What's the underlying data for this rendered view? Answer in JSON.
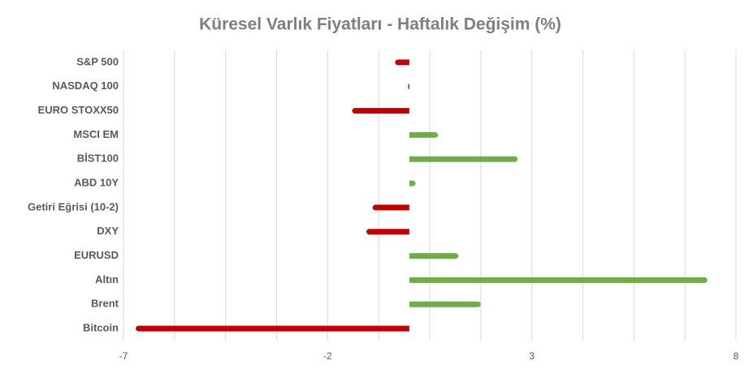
{
  "chart_data": {
    "type": "barh",
    "title": "Küresel Varlık Fiyatları - Haftalık Değişim (%)",
    "categories": [
      "S&P 500",
      "NASDAQ 100",
      "EURO STOXX50",
      "MSCI EM",
      "BİST100",
      "ABD 10Y",
      "Getiri Eğrisi (10-2)",
      "DXY",
      "EURUSD",
      "Altın",
      "Brent",
      "Bitcoin"
    ],
    "values": [
      -0.35,
      -0.03,
      -1.4,
      0.7,
      2.65,
      0.15,
      -0.9,
      -1.05,
      1.2,
      7.3,
      1.75,
      -6.7
    ],
    "colors": [
      "#c00000",
      "#c00000",
      "#c00000",
      "#70ad47",
      "#70ad47",
      "#70ad47",
      "#c00000",
      "#c00000",
      "#70ad47",
      "#70ad47",
      "#70ad47",
      "#c00000"
    ],
    "xlim": [
      -7,
      8
    ],
    "xticks": [
      -7,
      -2,
      3,
      8
    ],
    "xgrid": [
      -7,
      -5.75,
      -4.5,
      -3.25,
      -2,
      -0.75,
      0.5,
      1.75,
      3,
      4.25,
      5.5,
      6.75,
      8
    ],
    "grid": true
  }
}
